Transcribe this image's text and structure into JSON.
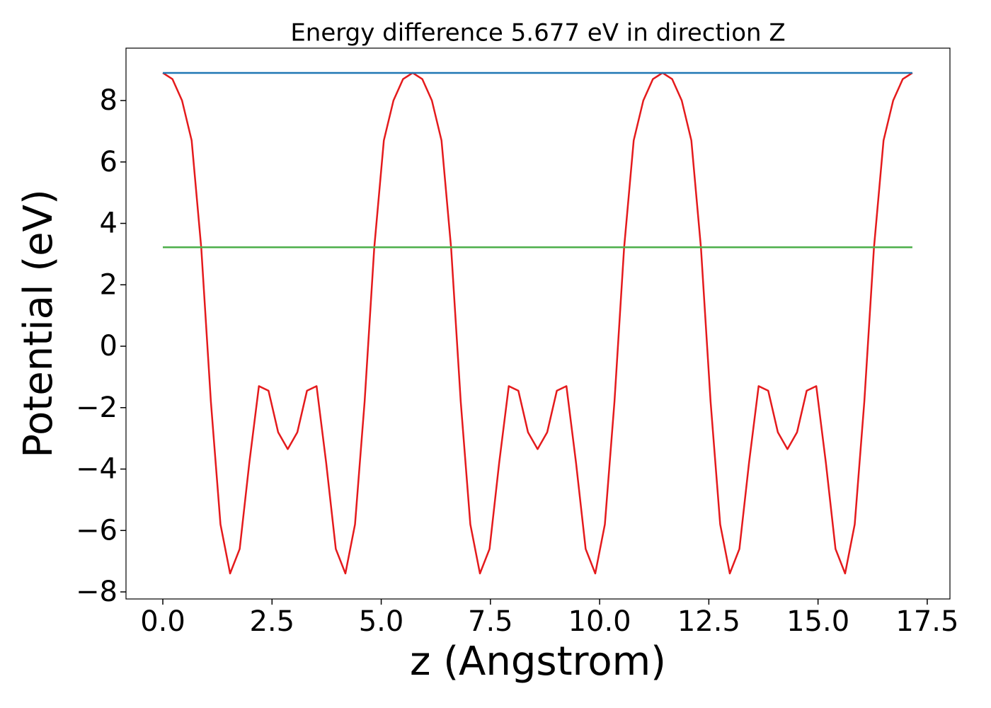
{
  "chart_data": {
    "type": "line",
    "title": "Energy difference 5.677 eV in direction Z",
    "xlabel": "z (Angstrom)",
    "ylabel": "Potential (eV)",
    "series": [
      {
        "color": "#e41a1c",
        "x": [
          0,
          0.22,
          0.44,
          0.66,
          0.88,
          1.1,
          1.32,
          1.54,
          1.76,
          1.98,
          2.2,
          2.42,
          2.64,
          2.86,
          3.08,
          3.3,
          3.52,
          3.74,
          3.96,
          4.18,
          4.4,
          4.62,
          4.84,
          5.06,
          5.28,
          5.5,
          5.72,
          5.94,
          6.16,
          6.38,
          6.6,
          6.82,
          7.04,
          7.26,
          7.48,
          7.7,
          7.92,
          8.14,
          8.36,
          8.58,
          8.8,
          9.02,
          9.24,
          9.46,
          9.68,
          9.9,
          10.12,
          10.34,
          10.56,
          10.78,
          11,
          11.22,
          11.44,
          11.66,
          11.88,
          12.1,
          12.32,
          12.54,
          12.76,
          12.98,
          13.2,
          13.42,
          13.64,
          13.86,
          14.08,
          14.3,
          14.52,
          14.74,
          14.96,
          15.18,
          15.4,
          15.62,
          15.84,
          16.06,
          16.28,
          16.5,
          16.72,
          16.94,
          17.16
        ],
        "values": [
          8.9,
          8.7,
          8.0,
          6.7,
          3.2,
          -1.8,
          -5.8,
          -7.4,
          -6.6,
          -3.8,
          -1.3,
          -1.45,
          -2.8,
          -3.35,
          -2.8,
          -1.45,
          -1.3,
          -3.8,
          -6.6,
          -7.4,
          -5.8,
          -1.8,
          3.2,
          6.7,
          8.0,
          8.7,
          8.9,
          8.7,
          8.0,
          6.7,
          3.2,
          -1.8,
          -5.8,
          -7.4,
          -6.6,
          -3.8,
          -1.3,
          -1.45,
          -2.8,
          -3.35,
          -2.8,
          -1.45,
          -1.3,
          -3.8,
          -6.6,
          -7.4,
          -5.8,
          -1.8,
          3.2,
          6.7,
          8.0,
          8.7,
          8.9,
          8.7,
          8.0,
          6.7,
          3.2,
          -1.8,
          -5.8,
          -7.4,
          -6.6,
          -3.8,
          -1.3,
          -1.45,
          -2.8,
          -3.35,
          -2.8,
          -1.45,
          -1.3,
          -3.8,
          -6.6,
          -7.4,
          -5.8,
          -1.8,
          3.2,
          6.7,
          8.0,
          8.7,
          8.9
        ]
      },
      {
        "color": "#1f77b4",
        "x": [
          0,
          17.16
        ],
        "values": [
          8.9,
          8.9
        ]
      },
      {
        "color": "#4daf4a",
        "x": [
          0,
          17.16
        ],
        "values": [
          3.223,
          3.223
        ]
      }
    ],
    "xlim": [
      -0.843,
      18.02
    ],
    "ylim": [
      -8.23,
      9.706
    ],
    "xticks": [
      {
        "value": 0,
        "label": "0.0"
      },
      2.5,
      {
        "value": 5,
        "label": "5.0"
      },
      7.5,
      {
        "value": 10,
        "label": "10.0"
      },
      12.5,
      {
        "value": 15,
        "label": "15.0"
      },
      17.5
    ],
    "yticks": [
      {
        "value": -8,
        "label": "−8"
      },
      {
        "value": -6,
        "label": "−6"
      },
      {
        "value": -4,
        "label": "−4"
      },
      {
        "value": -2,
        "label": "−2"
      },
      0,
      2,
      4,
      6,
      8
    ]
  }
}
